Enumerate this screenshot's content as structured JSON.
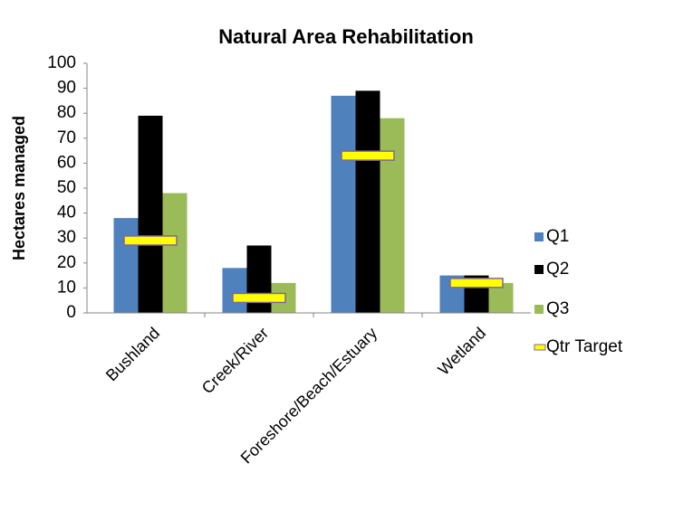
{
  "chart_data": {
    "type": "bar",
    "title": "Natural Area Rehabilitation",
    "y_label": "Hectares managed",
    "categories": [
      "Bushland",
      "Creek/River",
      "Foreshore/Beach/Estuary",
      "Wetland"
    ],
    "series": [
      {
        "name": "Q1",
        "color": "#4f81bd",
        "style": "bar",
        "values": [
          38,
          18,
          87,
          15
        ]
      },
      {
        "name": "Q2",
        "color": "#000000",
        "style": "bar",
        "values": [
          79,
          27,
          89,
          15
        ]
      },
      {
        "name": "Q3",
        "color": "#9bbb59",
        "style": "bar",
        "values": [
          48,
          12,
          78,
          12
        ]
      },
      {
        "name": "Qtr Target",
        "color": "#ffff00",
        "edge_color": "#8064a2",
        "style": "dash",
        "values": [
          29,
          6,
          63,
          12
        ]
      }
    ],
    "ylim": [
      0,
      100
    ],
    "yticks": [
      0,
      10,
      20,
      30,
      40,
      50,
      60,
      70,
      80,
      90,
      100
    ],
    "grid": false,
    "legend": "right"
  }
}
